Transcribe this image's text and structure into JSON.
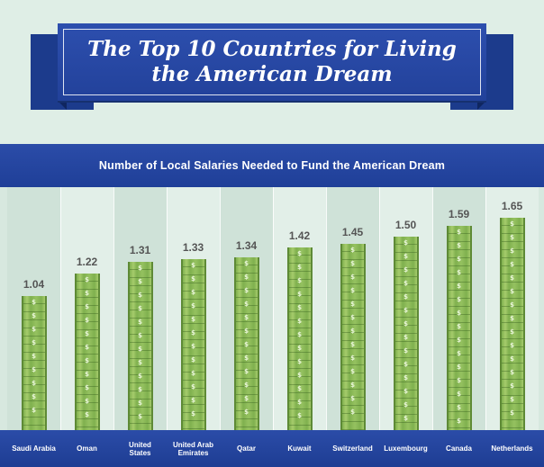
{
  "title": {
    "line1": "The Top 10 Countries for Living",
    "line2": "the American Dream"
  },
  "colors": {
    "banner": "#2444a0",
    "bar": "#7fb04e",
    "background": "#dfeee6",
    "value_text": "#555555"
  },
  "chart_data": {
    "type": "bar",
    "title": "Number of Local Salaries Needed to Fund the American Dream",
    "categories": [
      "Saudi Arabia",
      "Oman",
      "United States",
      "United Arab Emirates",
      "Qatar",
      "Kuwait",
      "Switzerland",
      "Luxembourg",
      "Canada",
      "Netherlands"
    ],
    "values": [
      1.04,
      1.22,
      1.31,
      1.33,
      1.34,
      1.42,
      1.45,
      1.5,
      1.59,
      1.65
    ],
    "value_labels": [
      "1.04",
      "1.22",
      "1.31",
      "1.33",
      "1.34",
      "1.42",
      "1.45",
      "1.50",
      "1.59",
      "1.65"
    ],
    "xlabel": "",
    "ylabel": "",
    "ylim": [
      0,
      1.65
    ],
    "grid": false,
    "legend": "none"
  }
}
